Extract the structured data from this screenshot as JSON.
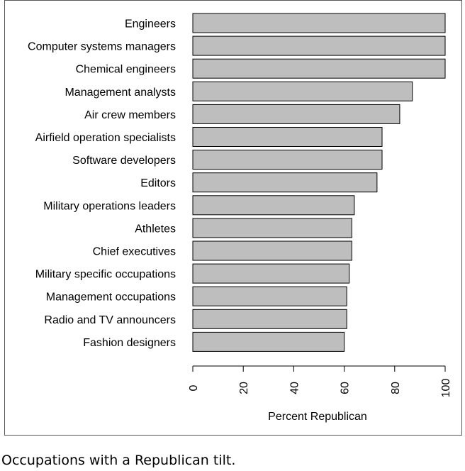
{
  "caption": "Occupations with a Republican tilt.",
  "chart_data": {
    "type": "bar",
    "orientation": "horizontal",
    "categories": [
      "Engineers",
      "Computer systems managers",
      "Chemical engineers",
      "Management analysts",
      "Air crew members",
      "Airfield operation specialists",
      "Software developers",
      "Editors",
      "Military operations leaders",
      "Athletes",
      "Chief executives",
      "Military specific occupations",
      "Management occupations",
      "Radio and TV announcers",
      "Fashion designers"
    ],
    "values": [
      100,
      100,
      100,
      87,
      82,
      75,
      75,
      73,
      64,
      63,
      63,
      62,
      61,
      61,
      60
    ],
    "title": "",
    "xlabel": "Percent Republican",
    "ylabel": "",
    "xlim": [
      0,
      100
    ],
    "xticks": [
      0,
      20,
      40,
      60,
      80,
      100
    ],
    "bar_color": "#bebebe",
    "bar_edge_color": "#000000",
    "grid": false,
    "legend": "none"
  }
}
